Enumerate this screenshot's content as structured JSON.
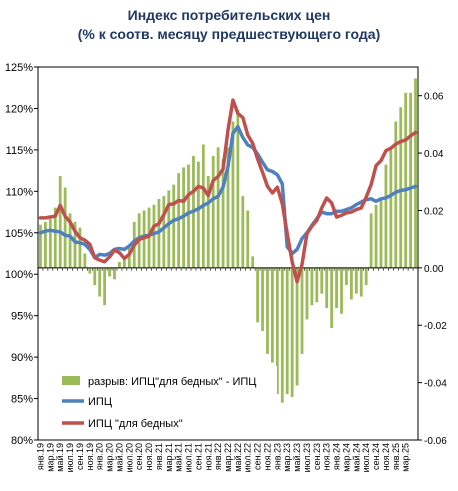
{
  "chart_data": {
    "type": "bar+line",
    "title_lines": [
      "Индекс потребительских цен",
      "(% к соотв. месяцу предшествующего года)"
    ],
    "xlabel": "",
    "ylabel": "",
    "ylim_left": [
      80,
      125
    ],
    "ylim_right": [
      -0.06,
      0.07
    ],
    "left_ticks": [
      "80%",
      "85%",
      "90%",
      "95%",
      "100%",
      "105%",
      "110%",
      "115%",
      "120%",
      "125%"
    ],
    "right_ticks": [
      "-0.06",
      "-0.04",
      "-0.02",
      "0.00",
      "0.02",
      "0.04",
      "0.06"
    ],
    "right_tick_values": [
      -0.06,
      -0.04,
      -0.02,
      0.0,
      0.02,
      0.04,
      0.06
    ],
    "x_labels": [
      "янв.19",
      "мар.19",
      "май.19",
      "июл.19",
      "сен.19",
      "ноя.19",
      "янв.20",
      "мар.20",
      "май.20",
      "июл.20",
      "сен.20",
      "ноя.20",
      "янв.21",
      "мар.21",
      "май.21",
      "июл.21",
      "сен.21",
      "ноя.21",
      "янв.22",
      "мар.22",
      "май.22",
      "июл.22",
      "сен.22",
      "ноя.22",
      "янв.23",
      "мар.23",
      "май.23",
      "июл.23",
      "сен.23",
      "ноя.23",
      "янв.24",
      "мар.24",
      "май.24",
      "июл.24",
      "сен.24",
      "ноя.24",
      "янв.25",
      "мар.25"
    ],
    "x_label_every": 2,
    "legend": {
      "position": "bottom-left",
      "entries": [
        "разрыв: ИПЦ\"для бедных\" - ИПЦ",
        "ИПЦ",
        "ИПЦ \"для бедных\""
      ]
    },
    "grid": false,
    "colors": {
      "gap": "#9bbb59",
      "cpi": "#4f81bd",
      "cpi_poor": "#c0504d",
      "title": "#1f3864"
    },
    "series": [
      {
        "name": "ИПЦ",
        "axis": "left",
        "values": [
          105.0,
          105.2,
          105.3,
          105.2,
          105.1,
          104.7,
          104.6,
          103.9,
          103.8,
          103.6,
          103.0,
          102.0,
          102.4,
          102.3,
          102.5,
          103.0,
          103.1,
          103.0,
          103.4,
          104.0,
          104.4,
          104.6,
          104.7,
          104.9,
          105.1,
          105.6,
          106.1,
          106.5,
          106.7,
          107.0,
          107.4,
          107.6,
          107.9,
          108.3,
          108.6,
          109.1,
          109.4,
          110.5,
          113.0,
          117.0,
          117.8,
          116.5,
          115.6,
          115.3,
          114.5,
          113.5,
          112.6,
          112.4,
          112.0,
          110.9,
          103.3,
          102.5,
          103.0,
          104.3,
          105.0,
          105.9,
          106.7,
          107.5,
          107.3,
          107.3,
          107.6,
          107.6,
          107.8,
          108.0,
          108.4,
          108.7,
          109.0,
          109.1,
          108.8,
          109.1,
          109.2,
          109.5,
          109.9,
          110.1,
          110.2,
          110.4,
          110.6
        ]
      },
      {
        "name": "ИПЦ \"для бедных\"",
        "axis": "left",
        "values": [
          106.8,
          106.8,
          106.9,
          107.0,
          108.3,
          107.0,
          106.3,
          105.2,
          104.4,
          104.1,
          103.6,
          102.0,
          101.7,
          101.5,
          102.1,
          102.9,
          102.6,
          101.9,
          102.4,
          103.5,
          104.2,
          104.4,
          104.6,
          105.8,
          106.1,
          107.2,
          108.4,
          108.5,
          108.9,
          108.8,
          109.6,
          110.0,
          110.6,
          110.4,
          109.5,
          111.3,
          111.8,
          112.7,
          117.4,
          121.0,
          119.4,
          118.9,
          116.8,
          115.8,
          113.9,
          112.3,
          110.6,
          109.8,
          110.5,
          108.5,
          104.9,
          101.5,
          99.1,
          101.2,
          104.9,
          105.8,
          106.5,
          108.0,
          109.2,
          108.6,
          106.9,
          107.1,
          107.4,
          107.5,
          107.8,
          108.0,
          109.3,
          110.8,
          113.1,
          113.7,
          114.9,
          115.2,
          115.7,
          116.0,
          116.2,
          116.7,
          117.1
        ]
      },
      {
        "name": "разрыв: ИПЦ\"для бедных\" - ИПЦ",
        "axis": "right",
        "type": "bar",
        "values": [
          0.015,
          0.016,
          0.017,
          0.021,
          0.032,
          0.028,
          0.019,
          0.016,
          0.014,
          0.005,
          -0.002,
          -0.006,
          -0.01,
          -0.013,
          -0.003,
          -0.004,
          0.002,
          0.004,
          0.007,
          0.016,
          0.019,
          0.02,
          0.021,
          0.022,
          0.024,
          0.025,
          0.027,
          0.029,
          0.033,
          0.035,
          0.036,
          0.039,
          0.037,
          0.043,
          0.032,
          0.039,
          0.042,
          0.038,
          0.042,
          0.051,
          0.055,
          0.025,
          0.02,
          0.004,
          -0.019,
          -0.022,
          -0.03,
          -0.033,
          -0.044,
          -0.047,
          -0.044,
          -0.045,
          -0.041,
          -0.03,
          -0.018,
          -0.013,
          -0.012,
          -0.009,
          -0.014,
          -0.021,
          -0.014,
          -0.016,
          -0.006,
          -0.011,
          -0.009,
          -0.01,
          -0.006,
          0.019,
          0.022,
          0.024,
          0.036,
          0.042,
          0.051,
          0.056,
          0.061,
          0.061,
          0.066
        ]
      }
    ]
  }
}
